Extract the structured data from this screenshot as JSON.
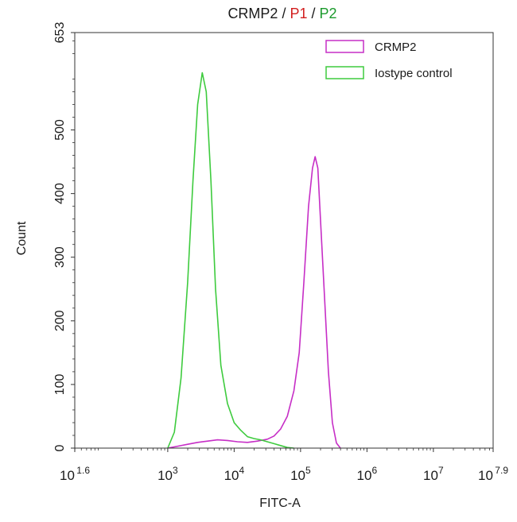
{
  "chart_data": {
    "type": "line",
    "title_parts": [
      {
        "text": "CRMP2",
        "color": "#1a1a1a"
      },
      {
        "text": " / ",
        "color": "#1a1a1a"
      },
      {
        "text": "P1",
        "color": "#d21e1e"
      },
      {
        "text": " / ",
        "color": "#1a1a1a"
      },
      {
        "text": "P2",
        "color": "#1b9a2c"
      }
    ],
    "xlabel": "FITC-A",
    "ylabel": "Count",
    "x_scale": "log10",
    "xlim_exp": [
      1.6,
      7.9
    ],
    "ylim": [
      0,
      653
    ],
    "x_ticks": [
      {
        "exp": 1.6,
        "base": "10",
        "sup": "1.6"
      },
      {
        "exp": 3,
        "base": "10",
        "sup": "3"
      },
      {
        "exp": 4,
        "base": "10",
        "sup": "4"
      },
      {
        "exp": 5,
        "base": "10",
        "sup": "5"
      },
      {
        "exp": 6,
        "base": "10",
        "sup": "6"
      },
      {
        "exp": 7,
        "base": "10",
        "sup": "7"
      },
      {
        "exp": 7.9,
        "base": "10",
        "sup": "7.9"
      }
    ],
    "y_ticks": [
      0,
      100,
      200,
      300,
      400,
      500,
      653
    ],
    "legend_position": "top-right",
    "series": [
      {
        "name": "CRMP2",
        "color": "#c62ec6",
        "points": [
          [
            3.0,
            0
          ],
          [
            3.15,
            3
          ],
          [
            3.3,
            6
          ],
          [
            3.45,
            9
          ],
          [
            3.6,
            11
          ],
          [
            3.75,
            13
          ],
          [
            3.9,
            12
          ],
          [
            4.05,
            10
          ],
          [
            4.2,
            9
          ],
          [
            4.35,
            11
          ],
          [
            4.5,
            14
          ],
          [
            4.6,
            19
          ],
          [
            4.7,
            30
          ],
          [
            4.8,
            50
          ],
          [
            4.9,
            90
          ],
          [
            4.98,
            150
          ],
          [
            5.05,
            260
          ],
          [
            5.12,
            380
          ],
          [
            5.18,
            440
          ],
          [
            5.22,
            458
          ],
          [
            5.26,
            440
          ],
          [
            5.3,
            360
          ],
          [
            5.36,
            240
          ],
          [
            5.42,
            120
          ],
          [
            5.48,
            40
          ],
          [
            5.54,
            8
          ],
          [
            5.6,
            0
          ]
        ]
      },
      {
        "name": "Iostype control",
        "color": "#3ecb3e",
        "points": [
          [
            3.0,
            0
          ],
          [
            3.1,
            25
          ],
          [
            3.2,
            110
          ],
          [
            3.3,
            260
          ],
          [
            3.38,
            420
          ],
          [
            3.45,
            540
          ],
          [
            3.52,
            590
          ],
          [
            3.58,
            560
          ],
          [
            3.65,
            420
          ],
          [
            3.72,
            250
          ],
          [
            3.8,
            130
          ],
          [
            3.9,
            70
          ],
          [
            4.0,
            40
          ],
          [
            4.1,
            28
          ],
          [
            4.2,
            18
          ],
          [
            4.3,
            15
          ],
          [
            4.4,
            13
          ],
          [
            4.5,
            10
          ],
          [
            4.6,
            7
          ],
          [
            4.7,
            4
          ],
          [
            4.8,
            1
          ],
          [
            4.9,
            0
          ]
        ]
      }
    ]
  }
}
